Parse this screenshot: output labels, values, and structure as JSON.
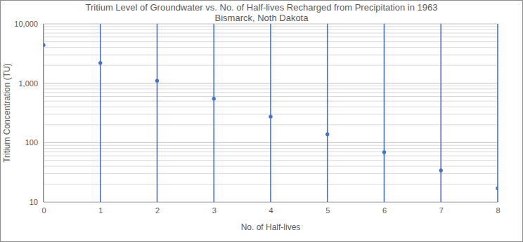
{
  "chart_data": {
    "type": "scatter",
    "title": "Tritium Level of Groundwater vs. No. of Half-lives Recharged from Precipitation in 1963",
    "subtitle": "Bismarck, Noth Dakota",
    "x_label": "No. of Half-lives",
    "y_label": "Tritium Concentration (TU)",
    "x": [
      0,
      1,
      2,
      3,
      4,
      5,
      6,
      7,
      8
    ],
    "values": [
      4400,
      2200,
      1100,
      550,
      275,
      138,
      69,
      34,
      17
    ],
    "color": "#4472c4",
    "marker": "circle",
    "log": "y",
    "grid": true,
    "xlim": [
      0,
      8
    ],
    "xticks": [
      0,
      1,
      2,
      3,
      4,
      5,
      6,
      7,
      8
    ],
    "ylim": [
      10,
      10000
    ],
    "yticks": [
      10,
      100,
      {
        "value": 1000,
        "label": "1,000"
      },
      {
        "value": 10000,
        "label": "10,000"
      }
    ]
  }
}
